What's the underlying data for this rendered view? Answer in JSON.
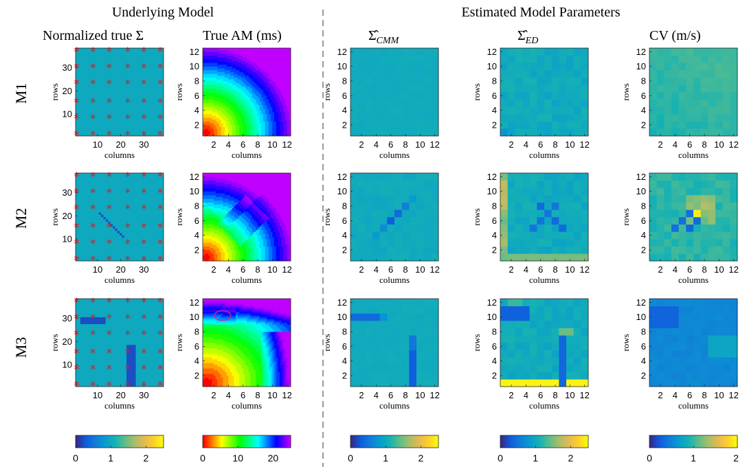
{
  "figure": {
    "group_left": "Underlying Model",
    "group_right": "Estimated Model Parameters",
    "rows": [
      "M1",
      "M2",
      "M3"
    ]
  },
  "chart_data": [
    {
      "type": "heatmap",
      "id": "sigma_true",
      "title": "Normalized true Σ",
      "xlabel": "columns",
      "ylabel": "rows",
      "grid": 38,
      "xticks": [
        10,
        20,
        30
      ],
      "yticks": [
        10,
        20,
        30
      ],
      "colormap": "parula",
      "clim": [
        0,
        2.5
      ],
      "background": 1.0,
      "anomaly_value": 0.2,
      "electrodes": "6x6 grid at rows/columns 1, 8, 15, 23, 30, 37 (red asterisks)",
      "features": {
        "M1": "uniform",
        "M2": "diagonal low-conductivity line from (11,21) to (21,11)",
        "M3": "horizontal bar rows 28-30 cols 3-13; vertical bar rows 1-18 cols 23-26"
      },
      "colorbar_ticks": [
        "0",
        "1",
        "2"
      ]
    },
    {
      "type": "heatmap",
      "id": "am_true",
      "title": "True AM (ms)",
      "xlabel": "columns",
      "ylabel": "rows",
      "grid": 12,
      "xticks": [
        2,
        4,
        6,
        8,
        10,
        12
      ],
      "yticks": [
        2,
        4,
        6,
        8,
        10,
        12
      ],
      "colormap": "hsv",
      "clim": [
        0,
        25
      ],
      "pacing_site": "bottom-left corner (1,1)",
      "colorbar_ticks": [
        "0",
        "10",
        "20"
      ]
    },
    {
      "type": "heatmap",
      "id": "sigma_cmm",
      "title": "Σ̂_CMM",
      "xlabel": "columns",
      "ylabel": "rows",
      "grid": 12,
      "xticks": [
        2,
        4,
        6,
        8,
        10,
        12
      ],
      "yticks": [
        2,
        4,
        6,
        8,
        10,
        12
      ],
      "colormap": "parula",
      "clim": [
        0,
        2.5
      ],
      "colorbar_ticks": [
        "0",
        "1",
        "2"
      ]
    },
    {
      "type": "heatmap",
      "id": "sigma_ed",
      "title": "Σ̂_ED",
      "xlabel": "columns",
      "ylabel": "rows",
      "grid": 12,
      "xticks": [
        2,
        4,
        6,
        8,
        10,
        12
      ],
      "yticks": [
        2,
        4,
        6,
        8,
        10,
        12
      ],
      "colormap": "parula",
      "clim": [
        0,
        2.5
      ],
      "colorbar_ticks": [
        "0",
        "1",
        "2"
      ]
    },
    {
      "type": "heatmap",
      "id": "cv",
      "title": "CV (m/s)",
      "xlabel": "columns",
      "ylabel": "rows",
      "grid": 12,
      "xticks": [
        2,
        4,
        6,
        8,
        10,
        12
      ],
      "yticks": [
        2,
        4,
        6,
        8,
        10,
        12
      ],
      "colormap": "parula",
      "clim": [
        0,
        2
      ],
      "colorbar_ticks": [
        "0",
        "1",
        "2"
      ]
    }
  ]
}
